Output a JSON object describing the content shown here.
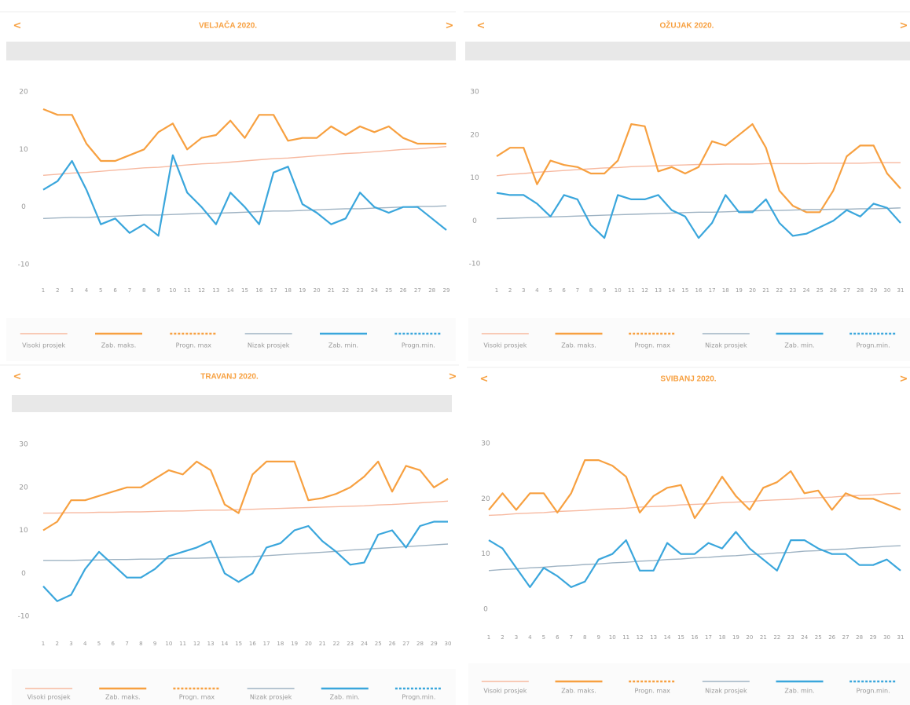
{
  "chart_data": [
    {
      "type": "line",
      "title": "VELJAČA 2020.",
      "nav": [
        "<",
        ">"
      ],
      "categories": [
        1,
        2,
        3,
        4,
        5,
        6,
        7,
        8,
        9,
        10,
        11,
        12,
        13,
        14,
        15,
        16,
        17,
        18,
        19,
        20,
        21,
        22,
        23,
        24,
        25,
        26,
        27,
        28,
        29
      ],
      "ylim": [
        -10,
        20
      ],
      "yticks": [
        -10,
        0,
        10,
        20
      ],
      "series": [
        {
          "name": "Visoki prosjek",
          "color": "#f7b9a0",
          "values": [
            5.5,
            5.7,
            5.9,
            6.0,
            6.2,
            6.4,
            6.6,
            6.8,
            6.9,
            7.1,
            7.3,
            7.5,
            7.6,
            7.8,
            8.0,
            8.2,
            8.4,
            8.5,
            8.7,
            8.9,
            9.1,
            9.3,
            9.4,
            9.6,
            9.8,
            10.0,
            10.1,
            10.3,
            10.5
          ]
        },
        {
          "name": "Zab. maks.",
          "color": "#f7a040",
          "values": [
            17,
            16,
            16,
            11,
            8,
            8,
            9,
            10,
            13,
            14.5,
            10,
            12,
            12.5,
            15,
            12,
            16,
            16,
            11.5,
            12,
            12,
            14,
            12.5,
            14,
            13,
            14,
            12,
            11,
            11,
            11
          ]
        },
        {
          "name": "Progn. max",
          "color": "#f7a040",
          "dashed": true,
          "values": [
            null,
            null,
            null,
            null,
            null,
            null,
            null,
            null,
            null,
            null,
            null,
            null,
            null,
            null,
            null,
            null,
            null,
            null,
            null,
            null,
            null,
            null,
            null,
            null,
            null,
            null,
            null,
            null,
            null
          ]
        },
        {
          "name": "Nizak prosjek",
          "color": "#9fb3c3",
          "values": [
            -2.0,
            -1.9,
            -1.8,
            -1.8,
            -1.7,
            -1.6,
            -1.5,
            -1.4,
            -1.4,
            -1.3,
            -1.2,
            -1.1,
            -1.1,
            -1.0,
            -0.9,
            -0.8,
            -0.7,
            -0.7,
            -0.6,
            -0.5,
            -0.4,
            -0.3,
            -0.3,
            -0.2,
            -0.1,
            0.0,
            0.1,
            0.1,
            0.2
          ]
        },
        {
          "name": "Zab. min.",
          "color": "#3aa6dc",
          "values": [
            3,
            4.5,
            8,
            3,
            -3,
            -2,
            -4.5,
            -3,
            -5,
            9,
            2.5,
            0,
            -3,
            2.5,
            0,
            -3,
            6,
            7,
            0.5,
            -1,
            -3,
            -2,
            2.5,
            0,
            -1,
            0,
            0,
            -2,
            -4
          ]
        },
        {
          "name": "Progn.min.",
          "color": "#3aa6dc",
          "dashed": true,
          "values": [
            null,
            null,
            null,
            null,
            null,
            null,
            null,
            null,
            null,
            null,
            null,
            null,
            null,
            null,
            null,
            null,
            null,
            null,
            null,
            null,
            null,
            null,
            null,
            null,
            null,
            null,
            null,
            null,
            null
          ]
        }
      ]
    },
    {
      "type": "line",
      "title": "OŽUJAK 2020.",
      "nav": [
        "<",
        ">"
      ],
      "categories": [
        1,
        2,
        3,
        4,
        5,
        6,
        7,
        8,
        9,
        10,
        11,
        12,
        13,
        14,
        15,
        16,
        17,
        18,
        19,
        20,
        21,
        22,
        23,
        24,
        25,
        26,
        27,
        28,
        29,
        30,
        31
      ],
      "ylim": [
        -10,
        30
      ],
      "yticks": [
        -10,
        0,
        10,
        20,
        30
      ],
      "series": [
        {
          "name": "Visoki prosjek",
          "color": "#f7b9a0",
          "values": [
            10.5,
            10.8,
            11.0,
            11.3,
            11.5,
            11.7,
            11.9,
            12.1,
            12.3,
            12.4,
            12.6,
            12.7,
            12.8,
            12.9,
            13.0,
            13.1,
            13.1,
            13.2,
            13.2,
            13.2,
            13.3,
            13.3,
            13.3,
            13.3,
            13.4,
            13.4,
            13.4,
            13.4,
            13.5,
            13.5,
            13.5
          ]
        },
        {
          "name": "Zab. maks.",
          "color": "#f7a040",
          "values": [
            15,
            17,
            17,
            8.5,
            14,
            13,
            12.5,
            11,
            11,
            14,
            22.5,
            22,
            11.5,
            12.5,
            11,
            12.5,
            18.5,
            17.5,
            20,
            22.5,
            17,
            7,
            3.5,
            2,
            2,
            7,
            15,
            17.5,
            17.5,
            11,
            7.5
          ]
        },
        {
          "name": "Progn. max",
          "color": "#f7a040",
          "dashed": true,
          "values": [
            null,
            null,
            null,
            null,
            null,
            null,
            null,
            null,
            null,
            null,
            null,
            null,
            null,
            null,
            null,
            null,
            null,
            null,
            null,
            null,
            null,
            null,
            null,
            null,
            null,
            null,
            null,
            null,
            null,
            null,
            null
          ]
        },
        {
          "name": "Nizak prosjek",
          "color": "#9fb3c3",
          "values": [
            0.5,
            0.6,
            0.7,
            0.8,
            0.9,
            1.0,
            1.1,
            1.2,
            1.3,
            1.4,
            1.5,
            1.6,
            1.7,
            1.8,
            1.9,
            2.0,
            2.0,
            2.1,
            2.2,
            2.3,
            2.4,
            2.4,
            2.5,
            2.6,
            2.6,
            2.7,
            2.7,
            2.8,
            2.8,
            2.9,
            3.0
          ]
        },
        {
          "name": "Zab. min.",
          "color": "#3aa6dc",
          "values": [
            6.5,
            6,
            6,
            4,
            1,
            6,
            5,
            -1,
            -4,
            6,
            5,
            5,
            6,
            2.5,
            1,
            -4,
            -0.5,
            6,
            2,
            2,
            5,
            -0.5,
            -3.5,
            -3,
            -1.5,
            0,
            2.5,
            1,
            4,
            3,
            -0.5
          ]
        },
        {
          "name": "Progn.min.",
          "color": "#3aa6dc",
          "dashed": true,
          "values": [
            null,
            null,
            null,
            null,
            null,
            null,
            null,
            null,
            null,
            null,
            null,
            null,
            null,
            null,
            null,
            null,
            null,
            null,
            null,
            null,
            null,
            null,
            null,
            null,
            null,
            null,
            null,
            null,
            null,
            null,
            null
          ]
        }
      ]
    },
    {
      "type": "line",
      "title": "TRAVANJ 2020.",
      "nav": [
        "<",
        ">"
      ],
      "categories": [
        1,
        2,
        3,
        4,
        5,
        6,
        7,
        8,
        9,
        10,
        11,
        12,
        13,
        14,
        15,
        16,
        17,
        18,
        19,
        20,
        21,
        22,
        23,
        24,
        25,
        26,
        27,
        28,
        29,
        30
      ],
      "ylim": [
        -10,
        30
      ],
      "yticks": [
        -10,
        0,
        10,
        20,
        30
      ],
      "series": [
        {
          "name": "Visoki prosjek",
          "color": "#f7b9a0",
          "values": [
            14.0,
            14.0,
            14.1,
            14.1,
            14.2,
            14.2,
            14.3,
            14.3,
            14.4,
            14.5,
            14.5,
            14.6,
            14.7,
            14.7,
            14.8,
            14.9,
            15.0,
            15.1,
            15.2,
            15.3,
            15.4,
            15.5,
            15.6,
            15.7,
            15.9,
            16.0,
            16.2,
            16.4,
            16.6,
            16.8
          ]
        },
        {
          "name": "Zab. maks.",
          "color": "#f7a040",
          "values": [
            10,
            12,
            17,
            17,
            18,
            19,
            20,
            20,
            22,
            24,
            23,
            26,
            24,
            16,
            14,
            23,
            26,
            26,
            26,
            17,
            17.5,
            18.5,
            20,
            22.5,
            26,
            19,
            25,
            24,
            20,
            22
          ]
        },
        {
          "name": "Progn. max",
          "color": "#f7a040",
          "dashed": true,
          "values": [
            null,
            null,
            null,
            null,
            null,
            null,
            null,
            null,
            null,
            null,
            null,
            null,
            null,
            null,
            null,
            null,
            null,
            null,
            null,
            null,
            null,
            null,
            null,
            null,
            null,
            null,
            null,
            null,
            null,
            null
          ]
        },
        {
          "name": "Nizak prosjek",
          "color": "#9fb3c3",
          "values": [
            3.0,
            3.0,
            3.0,
            3.1,
            3.1,
            3.2,
            3.2,
            3.3,
            3.3,
            3.4,
            3.5,
            3.5,
            3.6,
            3.7,
            3.8,
            3.9,
            4.1,
            4.3,
            4.5,
            4.7,
            4.9,
            5.1,
            5.4,
            5.6,
            5.8,
            6.0,
            6.2,
            6.4,
            6.6,
            6.8
          ]
        },
        {
          "name": "Zab. min.",
          "color": "#3aa6dc",
          "values": [
            -3,
            -6.5,
            -5,
            1,
            5,
            2,
            -1,
            -1,
            1,
            4,
            5,
            6,
            7.5,
            0,
            -2,
            0,
            6,
            7,
            10,
            11,
            7.5,
            5,
            2,
            2.5,
            9,
            10,
            6,
            11,
            12,
            12
          ]
        },
        {
          "name": "Progn.min.",
          "color": "#3aa6dc",
          "dashed": true,
          "values": [
            null,
            null,
            null,
            null,
            null,
            null,
            null,
            null,
            null,
            null,
            null,
            null,
            null,
            null,
            null,
            null,
            null,
            null,
            null,
            null,
            null,
            null,
            null,
            null,
            null,
            null,
            null,
            null,
            null,
            null
          ]
        }
      ]
    },
    {
      "type": "line",
      "title": "SVIBANJ 2020.",
      "nav": [
        "<",
        ">"
      ],
      "categories": [
        1,
        2,
        3,
        4,
        5,
        6,
        7,
        8,
        9,
        10,
        11,
        12,
        13,
        14,
        15,
        16,
        17,
        18,
        19,
        20,
        21,
        22,
        23,
        24,
        25,
        26,
        27,
        28,
        29,
        30,
        31
      ],
      "ylim": [
        0,
        30
      ],
      "yticks": [
        0,
        10,
        20,
        30
      ],
      "series": [
        {
          "name": "Visoki prosjek",
          "color": "#f7b9a0",
          "values": [
            17.0,
            17.1,
            17.3,
            17.4,
            17.5,
            17.7,
            17.8,
            17.9,
            18.1,
            18.2,
            18.3,
            18.5,
            18.6,
            18.7,
            18.9,
            19.0,
            19.1,
            19.3,
            19.4,
            19.5,
            19.7,
            19.8,
            19.9,
            20.1,
            20.2,
            20.3,
            20.5,
            20.6,
            20.7,
            20.9,
            21.0
          ]
        },
        {
          "name": "Zab. maks.",
          "color": "#f7a040",
          "values": [
            18,
            21,
            18,
            21,
            21,
            17.5,
            21,
            27,
            27,
            26,
            24,
            17.5,
            20.5,
            22,
            22.5,
            16.5,
            20,
            24,
            20.5,
            18,
            22,
            23,
            25,
            21,
            21.5,
            18,
            21,
            20,
            20,
            19,
            18
          ]
        },
        {
          "name": "Progn. max",
          "color": "#f7a040",
          "dashed": true,
          "values": [
            null,
            null,
            null,
            null,
            null,
            null,
            null,
            null,
            null,
            null,
            null,
            null,
            null,
            null,
            null,
            null,
            null,
            null,
            null,
            null,
            null,
            null,
            null,
            null,
            null,
            null,
            null,
            null,
            null,
            null,
            null
          ]
        },
        {
          "name": "Nizak prosjek",
          "color": "#9fb3c3",
          "values": [
            7.0,
            7.2,
            7.3,
            7.5,
            7.6,
            7.8,
            7.9,
            8.1,
            8.2,
            8.4,
            8.5,
            8.7,
            8.8,
            9.0,
            9.1,
            9.3,
            9.4,
            9.6,
            9.7,
            9.9,
            10.0,
            10.2,
            10.3,
            10.5,
            10.6,
            10.8,
            10.9,
            11.1,
            11.2,
            11.4,
            11.5
          ]
        },
        {
          "name": "Zab. min.",
          "color": "#3aa6dc",
          "values": [
            12.5,
            11,
            7.5,
            4,
            7.5,
            6,
            4,
            5,
            9,
            10,
            12.5,
            7,
            7,
            12,
            10,
            10,
            12,
            11,
            14,
            11,
            9,
            7,
            12.5,
            12.5,
            11,
            10,
            10,
            8,
            8,
            9,
            7
          ]
        },
        {
          "name": "Progn.min.",
          "color": "#3aa6dc",
          "dashed": true,
          "values": [
            null,
            null,
            null,
            null,
            null,
            null,
            null,
            null,
            null,
            null,
            null,
            null,
            null,
            null,
            null,
            null,
            null,
            null,
            null,
            null,
            null,
            null,
            null,
            null,
            null,
            null,
            null,
            null,
            null,
            null,
            null
          ]
        }
      ]
    }
  ]
}
